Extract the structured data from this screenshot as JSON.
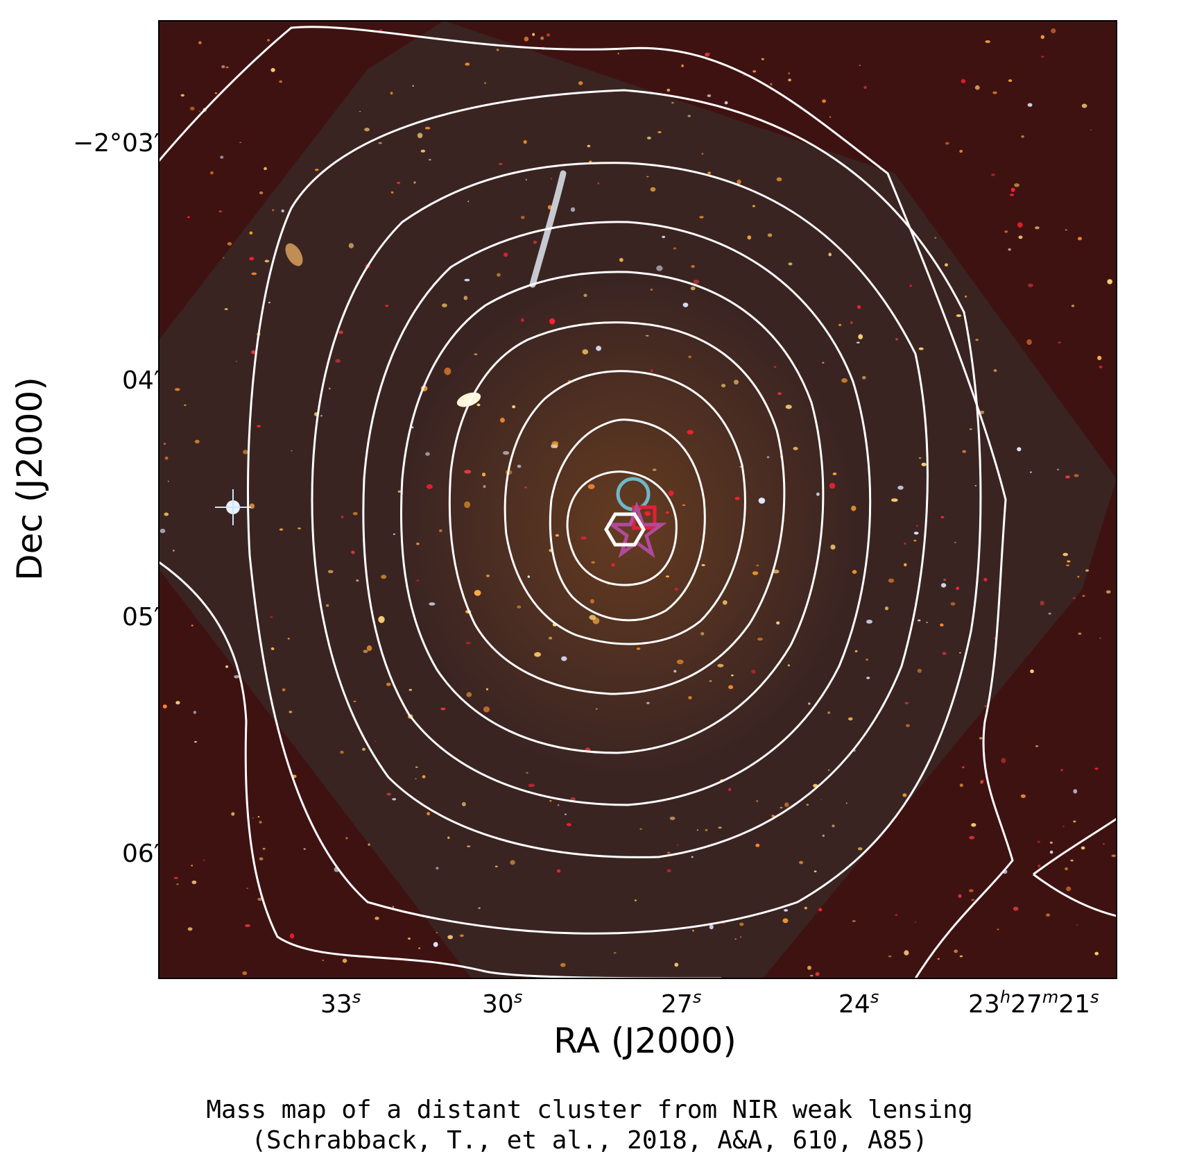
{
  "figure": {
    "xlabel": "RA (J2000)",
    "ylabel": "Dec (J2000)",
    "x_ticks": [
      {
        "base": "33",
        "sup": "s"
      },
      {
        "base": "30",
        "sup": "s"
      },
      {
        "base": "27",
        "sup": "s"
      },
      {
        "base": "24",
        "sup": "s"
      },
      {
        "parts": [
          {
            "base": "23",
            "sup": "h"
          },
          {
            "base": "27",
            "sup": "m"
          },
          {
            "base": "21",
            "sup": "s"
          }
        ]
      }
    ],
    "y_ticks": [
      "−2°03′",
      "04′",
      "05′",
      "06′"
    ],
    "contour_color": "#ffffff",
    "background_color": "#3f1212",
    "hst_field_color": "#3a2422",
    "markers": [
      {
        "shape": "circle",
        "color": "#6fb7c9"
      },
      {
        "shape": "square",
        "color": "#e0203a"
      },
      {
        "shape": "star",
        "color": "#b04b9a"
      },
      {
        "shape": "hexagon",
        "color": "#ffffff"
      }
    ]
  },
  "caption": {
    "line1": "Mass map of a distant cluster from NIR weak lensing",
    "line2": "(Schrabback, T., et al., 2018, A&A, 610, A85)"
  }
}
